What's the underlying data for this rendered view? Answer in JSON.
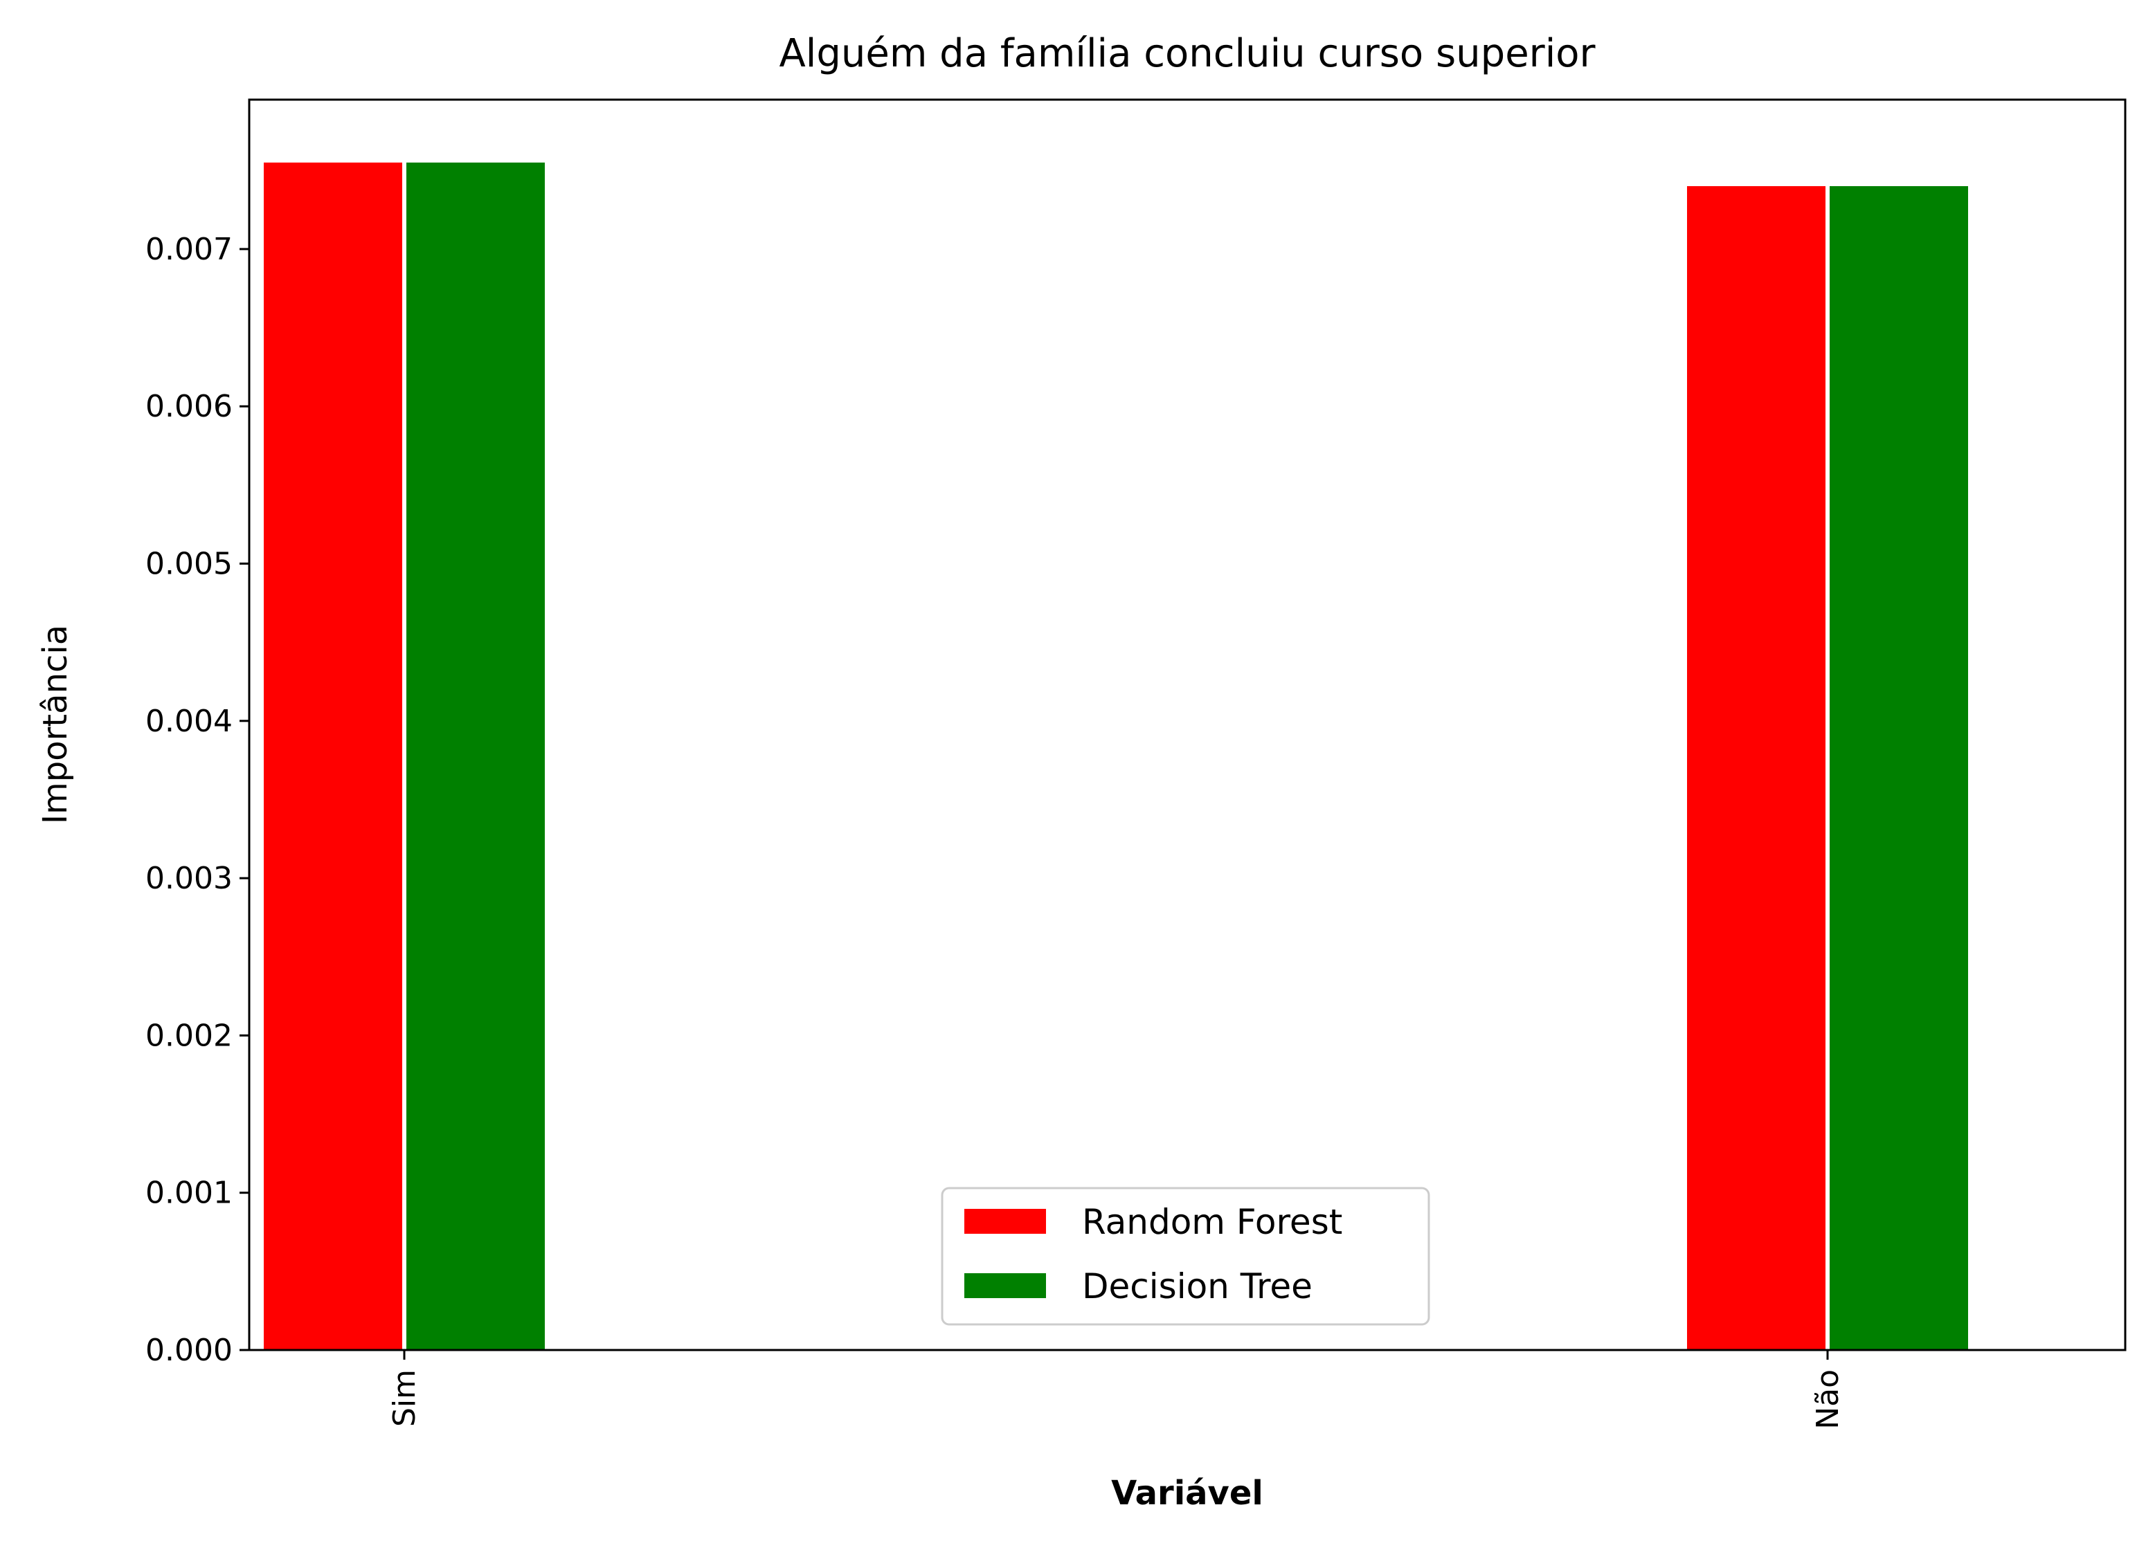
{
  "chart_data": {
    "type": "bar",
    "title": "Alguém da família concluiu curso superior",
    "xlabel": "Variável",
    "ylabel": "Importância",
    "categories": [
      "Sim",
      "Não"
    ],
    "series": [
      {
        "name": "Random Forest",
        "color": "#ff0000",
        "values": [
          0.00755,
          0.0074
        ]
      },
      {
        "name": "Decision Tree",
        "color": "#008000",
        "values": [
          0.00755,
          0.0074
        ]
      }
    ],
    "ylim": [
      0,
      0.00795
    ],
    "yticks": [
      "0.000",
      "0.001",
      "0.002",
      "0.003",
      "0.004",
      "0.005",
      "0.006",
      "0.007"
    ],
    "grid": false,
    "legend_position": "bottom-center"
  }
}
